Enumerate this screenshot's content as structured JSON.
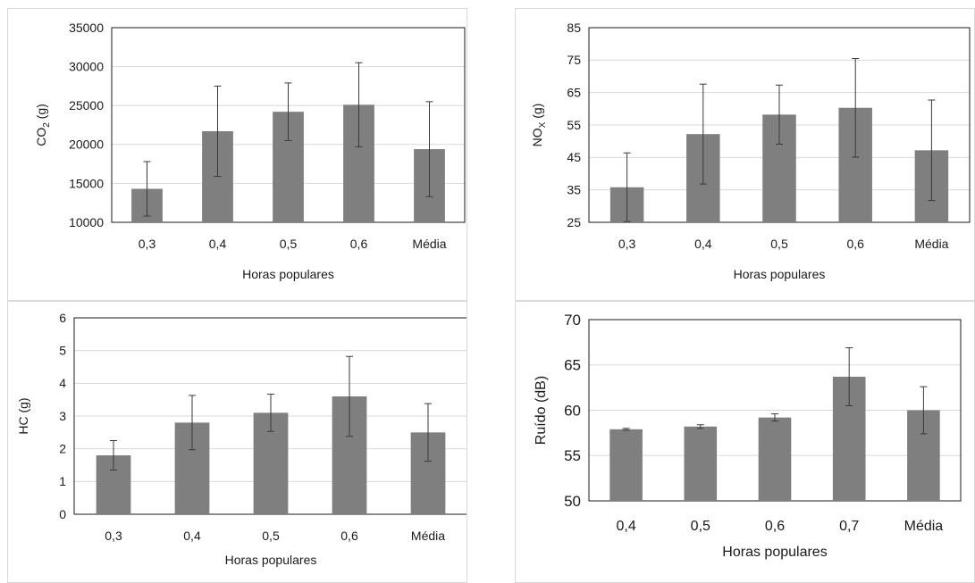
{
  "chart_data": [
    {
      "type": "bar",
      "categories": [
        "0,3",
        "0,4",
        "0,5",
        "0,6",
        "Média"
      ],
      "values": [
        14300,
        21700,
        24200,
        25100,
        19400
      ],
      "errors": [
        3500,
        5800,
        3700,
        5400,
        6100
      ],
      "ylim": [
        10000,
        35000
      ],
      "yticks": [
        "10000",
        "15000",
        "20000",
        "25000",
        "30000",
        "35000"
      ],
      "ylabel": "CO",
      "ylabel_sub": "2",
      "ylabel_suffix": " (g)",
      "xlabel": "Horas populares",
      "grid": true,
      "bar_color": "#7f7f7f"
    },
    {
      "type": "bar",
      "categories": [
        "0,3",
        "0,4",
        "0,5",
        "0,6",
        "Média"
      ],
      "values": [
        35.8,
        52.2,
        58.2,
        60.3,
        47.2
      ],
      "errors": [
        10.6,
        15.4,
        9.1,
        15.2,
        15.5
      ],
      "ylim": [
        25,
        85
      ],
      "yticks": [
        "25",
        "35",
        "45",
        "55",
        "65",
        "75",
        "85"
      ],
      "ylabel": "NO",
      "ylabel_sub": "X",
      "ylabel_suffix": " (g)",
      "xlabel": "Horas populares",
      "grid": true,
      "bar_color": "#7f7f7f"
    },
    {
      "type": "bar",
      "categories": [
        "0,3",
        "0,4",
        "0,5",
        "0,6",
        "Média"
      ],
      "values": [
        1.8,
        2.8,
        3.1,
        3.6,
        2.5
      ],
      "errors": [
        0.45,
        0.83,
        0.57,
        1.22,
        0.88
      ],
      "ylim": [
        0,
        6
      ],
      "yticks": [
        "0",
        "1",
        "2",
        "3",
        "4",
        "5",
        "6"
      ],
      "ylabel": "HC (g)",
      "ylabel_sub": "",
      "ylabel_suffix": "",
      "xlabel": "Horas populares",
      "grid": true,
      "bar_color": "#7f7f7f"
    },
    {
      "type": "bar",
      "categories": [
        "0,4",
        "0,5",
        "0,6",
        "0,7",
        "Média"
      ],
      "values": [
        57.9,
        58.2,
        59.2,
        63.7,
        60.0
      ],
      "errors": [
        0.1,
        0.2,
        0.4,
        3.2,
        2.6
      ],
      "ylim": [
        50,
        70
      ],
      "yticks": [
        "50",
        "55",
        "60",
        "65",
        "70"
      ],
      "ylabel": "Ruído (dB)",
      "ylabel_sub": "",
      "ylabel_suffix": "",
      "xlabel": "Horas populares",
      "grid": true,
      "bar_color": "#7f7f7f"
    }
  ]
}
